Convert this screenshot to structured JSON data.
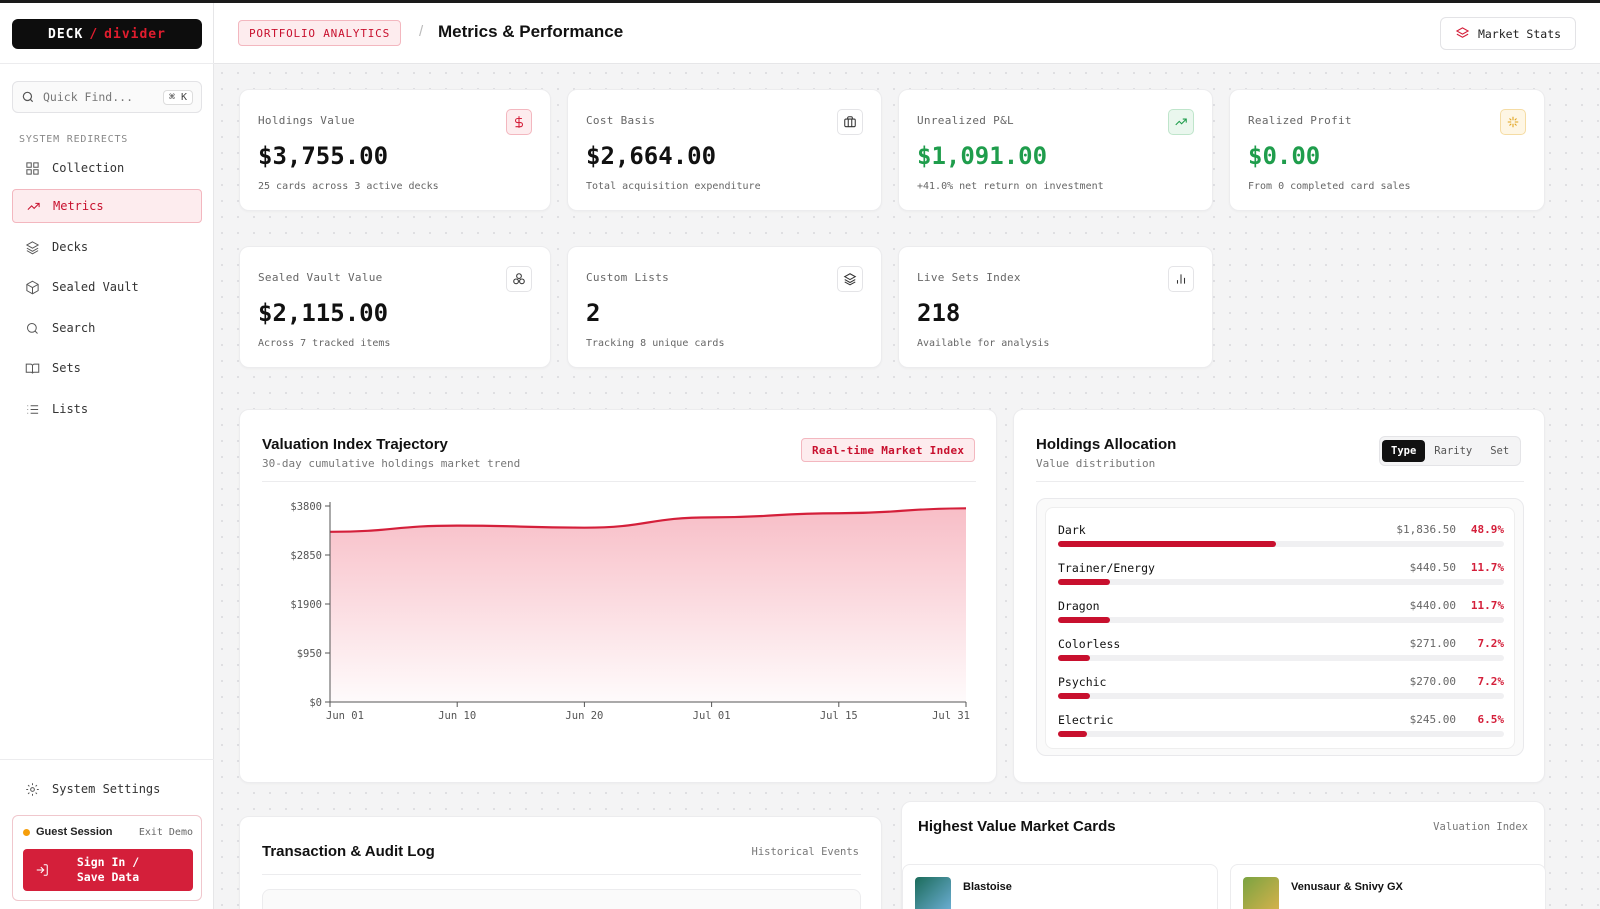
{
  "brand": {
    "left": "DECK",
    "slash": "/",
    "right": "divider"
  },
  "search": {
    "placeholder": "Quick Find...",
    "shortcut": "⌘ K"
  },
  "sidebar": {
    "section_label": "SYSTEM REDIRECTS",
    "items": [
      {
        "label": "Collection",
        "icon": "grid-icon"
      },
      {
        "label": "Metrics",
        "icon": "trend-icon",
        "active": true
      },
      {
        "label": "Decks",
        "icon": "layers-icon"
      },
      {
        "label": "Sealed Vault",
        "icon": "box-icon"
      },
      {
        "label": "Search",
        "icon": "search-icon"
      },
      {
        "label": "Sets",
        "icon": "book-icon"
      },
      {
        "label": "Lists",
        "icon": "list-icon"
      }
    ],
    "settings_label": "System Settings",
    "guest": {
      "label": "Guest Session",
      "exit": "Exit Demo",
      "signin_line1": "Sign In /",
      "signin_line2": "Save Data"
    }
  },
  "header": {
    "crumb": "PORTFOLIO ANALYTICS",
    "slash": "/",
    "title": "Metrics & Performance",
    "market_button": "Market Stats"
  },
  "stats": [
    {
      "label": "Holdings Value",
      "value": "$3,755.00",
      "desc": "25 cards across 3 active decks",
      "icon": "dollar-icon",
      "tone": "red"
    },
    {
      "label": "Cost Basis",
      "value": "$2,664.00",
      "desc": "Total acquisition expenditure",
      "icon": "briefcase-icon",
      "tone": "plain"
    },
    {
      "label": "Unrealized P&L",
      "value": "$1,091.00",
      "desc": "+41.0% net return on investment",
      "icon": "trending-up-icon",
      "tone": "green"
    },
    {
      "label": "Realized Profit",
      "value": "$0.00",
      "desc": "From 0 completed card sales",
      "icon": "sparkle-icon",
      "tone": "amber"
    },
    {
      "label": "Sealed Vault Value",
      "value": "$2,115.00",
      "desc": "Across 7 tracked items",
      "icon": "cluster-icon",
      "tone": "plain"
    },
    {
      "label": "Custom Lists",
      "value": "2",
      "desc": "Tracking 8 unique cards",
      "icon": "stack-icon",
      "tone": "plain"
    },
    {
      "label": "Live Sets Index",
      "value": "218",
      "desc": "Available for analysis",
      "icon": "bars-icon",
      "tone": "plain"
    }
  ],
  "valuation": {
    "title": "Valuation Index Trajectory",
    "subtitle": "30-day cumulative holdings market trend",
    "badge": "Real-time Market Index"
  },
  "chart_data": {
    "type": "area",
    "title": "Valuation Index Trajectory",
    "x_ticks": [
      "Jun 01",
      "Jun 10",
      "Jun 20",
      "Jul 01",
      "Jul 15",
      "Jul 31"
    ],
    "y_ticks": [
      "$0",
      "$950",
      "$1900",
      "$2850",
      "$3800"
    ],
    "ylim": [
      0,
      3800
    ],
    "series": [
      {
        "x": [
          "Jun 01",
          "Jun 10",
          "Jun 20",
          "Jul 01",
          "Jul 15",
          "Jul 31"
        ],
        "values": [
          3300,
          3420,
          3380,
          3580,
          3660,
          3755
        ]
      }
    ],
    "color": "#d41f3a",
    "grid": false
  },
  "allocation": {
    "title": "Holdings Allocation",
    "subtitle": "Value distribution",
    "tabs": [
      "Type",
      "Rarity",
      "Set"
    ],
    "active_tab": "Type",
    "rows": [
      {
        "name": "Dark",
        "value": "$1,836.50",
        "pct": "48.9%",
        "fraction": 0.489
      },
      {
        "name": "Trainer/Energy",
        "value": "$440.50",
        "pct": "11.7%",
        "fraction": 0.117
      },
      {
        "name": "Dragon",
        "value": "$440.00",
        "pct": "11.7%",
        "fraction": 0.117
      },
      {
        "name": "Colorless",
        "value": "$271.00",
        "pct": "7.2%",
        "fraction": 0.072
      },
      {
        "name": "Psychic",
        "value": "$270.00",
        "pct": "7.2%",
        "fraction": 0.072
      },
      {
        "name": "Electric",
        "value": "$245.00",
        "pct": "6.5%",
        "fraction": 0.065
      }
    ]
  },
  "transactions": {
    "title": "Transaction & Audit Log",
    "right": "Historical Events"
  },
  "market_cards": {
    "title": "Highest Value Market Cards",
    "right": "Valuation Index",
    "cards": [
      {
        "name": "Blastoise"
      },
      {
        "name": "Venusaur & Snivy GX"
      }
    ]
  }
}
